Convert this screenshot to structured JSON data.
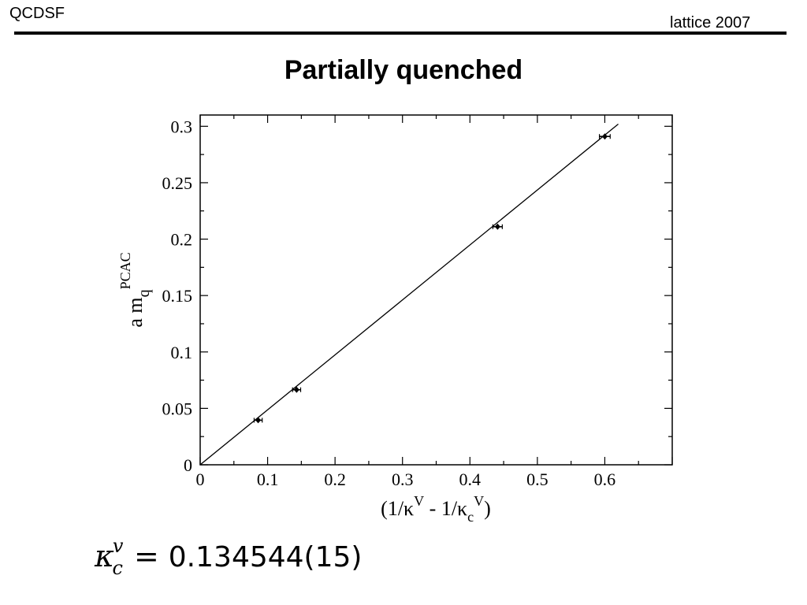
{
  "header": {
    "brand": "QCDSF",
    "conference": "lattice 2007"
  },
  "slide": {
    "title": "Partially quenched"
  },
  "formula": {
    "symbol": "κ",
    "superscript": "v",
    "subscript": "c",
    "equals": "=",
    "value": "0.134544(15)"
  },
  "chart_data": {
    "type": "scatter",
    "xlabel": {
      "open": "(1/κ",
      "sup1": "V",
      "mid": " - 1/κ",
      "sub": "c",
      "sup2": "V",
      "close": ")"
    },
    "ylabel": {
      "main": "a m",
      "sub": "q",
      "sup": "PCAC"
    },
    "xlim": [
      0,
      0.7
    ],
    "ylim": [
      0,
      0.31
    ],
    "xticks": [
      0,
      0.1,
      0.2,
      0.3,
      0.4,
      0.5,
      0.6
    ],
    "xtick_labels": [
      "0",
      "0.1",
      "0.2",
      "0.3",
      "0.4",
      "0.5",
      "0.6"
    ],
    "yticks": [
      0,
      0.05,
      0.1,
      0.15,
      0.2,
      0.25,
      0.3
    ],
    "ytick_labels": [
      "0",
      "0.05",
      "0.1",
      "0.15",
      "0.2",
      "0.25",
      "0.3"
    ],
    "series": [
      {
        "points": [
          {
            "x": 0.086,
            "y": 0.0395,
            "xerr": 0.006
          },
          {
            "x": 0.143,
            "y": 0.0665,
            "xerr": 0.006
          },
          {
            "x": 0.441,
            "y": 0.211,
            "xerr": 0.007
          },
          {
            "x": 0.6,
            "y": 0.291,
            "xerr": 0.008
          }
        ]
      }
    ],
    "fit_line": {
      "x": [
        0,
        0.62
      ],
      "y": [
        0,
        0.302
      ]
    },
    "legend": false,
    "grid": false
  }
}
